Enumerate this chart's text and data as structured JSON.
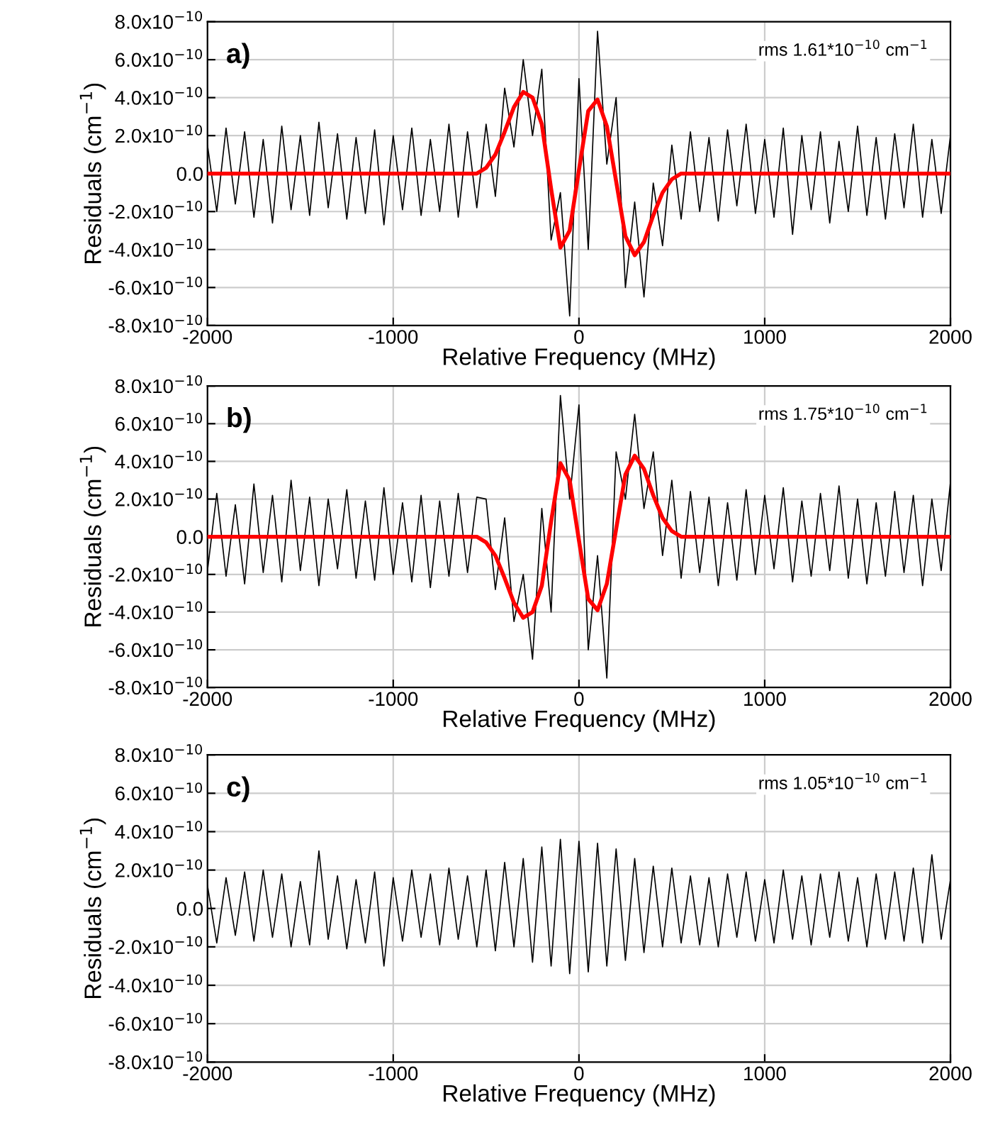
{
  "chart_data": [
    {
      "type": "line",
      "xlabel": "Relative Frequency (MHz)",
      "ylabel": "Residuals (cm$^{−1}$)",
      "annotations": [
        "a)",
        "rms 1.61*10$^{−10}$ cm$^{−1}$"
      ],
      "xlim": [
        -2000,
        2000
      ],
      "xticks": [
        -2000,
        -1000,
        0,
        1000,
        2000
      ],
      "ylim": [
        -8e-10,
        8e-10
      ],
      "yticks": [
        {
          "value": -8e-10,
          "label": "-8.0x10$^{−10}$"
        },
        {
          "value": -6e-10,
          "label": "-6.0x10$^{−10}$"
        },
        {
          "value": -4e-10,
          "label": "-4.0x10$^{−10}$"
        },
        {
          "value": -2e-10,
          "label": "-2.0x10$^{−10}$"
        },
        {
          "value": 0,
          "label": "0.0"
        },
        {
          "value": 2e-10,
          "label": "2.0x10$^{−10}$"
        },
        {
          "value": 4e-10,
          "label": "4.0x10$^{−10}$"
        },
        {
          "value": 6e-10,
          "label": "6.0x10$^{−10}$"
        },
        {
          "value": 8e-10,
          "label": "8.0x10$^{−10}$"
        }
      ],
      "grid": true,
      "legend": false,
      "marker": "none",
      "line_style": "solid",
      "x": [
        -2000,
        -1950,
        -1900,
        -1850,
        -1800,
        -1750,
        -1700,
        -1650,
        -1600,
        -1550,
        -1500,
        -1450,
        -1400,
        -1350,
        -1300,
        -1250,
        -1200,
        -1150,
        -1100,
        -1050,
        -1000,
        -950,
        -900,
        -850,
        -800,
        -750,
        -700,
        -650,
        -600,
        -550,
        -500,
        -450,
        -400,
        -350,
        -300,
        -250,
        -200,
        -150,
        -100,
        -50,
        0,
        50,
        100,
        150,
        200,
        250,
        300,
        350,
        400,
        450,
        500,
        550,
        600,
        650,
        700,
        750,
        800,
        850,
        900,
        950,
        1000,
        1050,
        1100,
        1150,
        1200,
        1250,
        1300,
        1350,
        1400,
        1450,
        1500,
        1550,
        1600,
        1650,
        1700,
        1750,
        1800,
        1850,
        1900,
        1950,
        2000
      ],
      "series": [
        {
          "color": "#000000",
          "values": [
            1.5e-10,
            -2e-10,
            2.4e-10,
            -1.6e-10,
            2.2e-10,
            -2.3e-10,
            1.8e-10,
            -2.6e-10,
            2.5e-10,
            -1.9e-10,
            2e-10,
            -2.2e-10,
            2.7e-10,
            -1.8e-10,
            2.1e-10,
            -2.4e-10,
            1.9e-10,
            -2.1e-10,
            2.3e-10,
            -2.7e-10,
            2e-10,
            -1.9e-10,
            2.4e-10,
            -2.2e-10,
            1.8e-10,
            -2e-10,
            2.6e-10,
            -2.3e-10,
            2.2e-10,
            -1.8e-10,
            2.6e-10,
            -1.2e-10,
            4.5e-10,
            1.4e-10,
            6e-10,
            2e-10,
            5.5e-10,
            -3.5e-10,
            -1e-10,
            -7.5e-10,
            5e-10,
            -4e-10,
            7.5e-10,
            5e-11,
            4e-10,
            -6e-10,
            -1.5e-10,
            -6.5e-10,
            -5e-11,
            -3.8e-10,
            1.5e-10,
            -2.4e-10,
            2.2e-10,
            -2e-10,
            1.9e-10,
            -2.5e-10,
            2.3e-10,
            -1.7e-10,
            2.6e-10,
            -2.1e-10,
            1.8e-10,
            -2.3e-10,
            2.4e-10,
            -3.2e-10,
            2e-10,
            -1.9e-10,
            2.2e-10,
            -2.6e-10,
            1.7e-10,
            -2e-10,
            2.5e-10,
            -2.2e-10,
            1.9e-10,
            -2.4e-10,
            2.1e-10,
            -1.8e-10,
            2.6e-10,
            -2.3e-10,
            1.8e-10,
            -2.1e-10,
            2e-10
          ]
        },
        {
          "color": "#ff0000",
          "x": [
            -2000,
            -600,
            -550,
            -500,
            -450,
            -400,
            -350,
            -300,
            -250,
            -200,
            -150,
            -100,
            -50,
            0,
            50,
            100,
            150,
            200,
            250,
            300,
            350,
            400,
            450,
            500,
            550,
            600,
            2000
          ],
          "values": [
            0,
            0,
            0,
            3e-11,
            1e-10,
            2.2e-10,
            3.5e-10,
            4.3e-10,
            4e-10,
            2.6e-10,
            -8e-11,
            -3.9e-10,
            -3e-10,
            2e-11,
            3.3e-10,
            3.9e-10,
            2.5e-10,
            -4e-11,
            -3.3e-10,
            -4.3e-10,
            -3.6e-10,
            -2.2e-10,
            -1e-10,
            -3e-11,
            0,
            0,
            0
          ]
        }
      ]
    },
    {
      "type": "line",
      "xlabel": "Relative Frequency (MHz)",
      "ylabel": "Residuals (cm$^{−1}$)",
      "annotations": [
        "b)",
        "rms 1.75*10$^{−10}$ cm$^{−1}$"
      ],
      "xlim": [
        -2000,
        2000
      ],
      "xticks": [
        -2000,
        -1000,
        0,
        1000,
        2000
      ],
      "ylim": [
        -8e-10,
        8e-10
      ],
      "yticks": [
        {
          "value": -8e-10,
          "label": "-8.0x10$^{−10}$"
        },
        {
          "value": -6e-10,
          "label": "-6.0x10$^{−10}$"
        },
        {
          "value": -4e-10,
          "label": "-4.0x10$^{−10}$"
        },
        {
          "value": -2e-10,
          "label": "-2.0x10$^{−10}$"
        },
        {
          "value": 0,
          "label": "0.0"
        },
        {
          "value": 2e-10,
          "label": "2.0x10$^{−10}$"
        },
        {
          "value": 4e-10,
          "label": "4.0x10$^{−10}$"
        },
        {
          "value": 6e-10,
          "label": "6.0x10$^{−10}$"
        },
        {
          "value": 8e-10,
          "label": "8.0x10$^{−10}$"
        }
      ],
      "grid": true,
      "legend": false,
      "marker": "none",
      "line_style": "solid",
      "x": [
        -2000,
        -1950,
        -1900,
        -1850,
        -1800,
        -1750,
        -1700,
        -1650,
        -1600,
        -1550,
        -1500,
        -1450,
        -1400,
        -1350,
        -1300,
        -1250,
        -1200,
        -1150,
        -1100,
        -1050,
        -1000,
        -950,
        -900,
        -850,
        -800,
        -750,
        -700,
        -650,
        -600,
        -550,
        -500,
        -450,
        -400,
        -350,
        -300,
        -250,
        -200,
        -150,
        -100,
        -50,
        0,
        50,
        100,
        150,
        200,
        250,
        300,
        350,
        400,
        450,
        500,
        550,
        600,
        650,
        700,
        750,
        800,
        850,
        900,
        950,
        1000,
        1050,
        1100,
        1150,
        1200,
        1250,
        1300,
        1350,
        1400,
        1450,
        1500,
        1550,
        1600,
        1650,
        1700,
        1750,
        1800,
        1850,
        1900,
        1950,
        2000
      ],
      "series": [
        {
          "color": "#000000",
          "values": [
            -1.8e-10,
            2.3e-10,
            -2.1e-10,
            1.7e-10,
            -2.5e-10,
            2.8e-10,
            -1.9e-10,
            2.2e-10,
            -2.4e-10,
            3e-10,
            -1.8e-10,
            2.1e-10,
            -2.6e-10,
            2e-10,
            -1.7e-10,
            2.5e-10,
            -2.2e-10,
            1.9e-10,
            -2.3e-10,
            2.6e-10,
            -2e-10,
            1.8e-10,
            -2.4e-10,
            2.2e-10,
            -2.7e-10,
            1.9e-10,
            -2.1e-10,
            2.3e-10,
            -1.9e-10,
            2.1e-10,
            2e-10,
            -2.8e-10,
            1e-10,
            -4.5e-10,
            -2e-10,
            -6.5e-10,
            1.5e-10,
            -4e-10,
            7.5e-10,
            2e-10,
            7e-10,
            -6e-10,
            -1e-10,
            -7.5e-10,
            4.5e-10,
            2e-10,
            6.5e-10,
            1.5e-10,
            4.5e-10,
            -1e-10,
            3e-10,
            -2.2e-10,
            2.4e-10,
            -1.9e-10,
            2.1e-10,
            -2.6e-10,
            1.8e-10,
            -2.3e-10,
            2.5e-10,
            -2e-10,
            2.2e-10,
            -1.7e-10,
            2.6e-10,
            -2.4e-10,
            1.9e-10,
            -2.1e-10,
            2.3e-10,
            -1.8e-10,
            2.7e-10,
            -2.2e-10,
            2e-10,
            -2.5e-10,
            1.8e-10,
            -2.1e-10,
            2.4e-10,
            -1.9e-10,
            2.2e-10,
            -2.6e-10,
            2e-10,
            -1.8e-10,
            2.9e-10
          ]
        },
        {
          "color": "#ff0000",
          "x": [
            -2000,
            -600,
            -550,
            -500,
            -450,
            -400,
            -350,
            -300,
            -250,
            -200,
            -150,
            -100,
            -50,
            0,
            50,
            100,
            150,
            200,
            250,
            300,
            350,
            400,
            450,
            500,
            550,
            600,
            2000
          ],
          "values": [
            0,
            0,
            0,
            -3e-11,
            -1e-10,
            -2.2e-10,
            -3.5e-10,
            -4.3e-10,
            -4e-10,
            -2.6e-10,
            8e-11,
            3.9e-10,
            3e-10,
            -2e-11,
            -3.3e-10,
            -3.9e-10,
            -2.5e-10,
            4e-11,
            3.3e-10,
            4.3e-10,
            3.6e-10,
            2.2e-10,
            1e-10,
            3e-11,
            0,
            0,
            0
          ]
        }
      ]
    },
    {
      "type": "line",
      "xlabel": "Relative Frequency (MHz)",
      "ylabel": "Residuals (cm$^{−1}$)",
      "annotations": [
        "c)",
        "rms 1.05*10$^{−10}$ cm$^{−1}$"
      ],
      "xlim": [
        -2000,
        2000
      ],
      "xticks": [
        -2000,
        -1000,
        0,
        1000,
        2000
      ],
      "ylim": [
        -8e-10,
        8e-10
      ],
      "yticks": [
        {
          "value": -8e-10,
          "label": "-8.0x10$^{−10}$"
        },
        {
          "value": -6e-10,
          "label": "-6.0x10$^{−10}$"
        },
        {
          "value": -4e-10,
          "label": "-4.0x10$^{−10}$"
        },
        {
          "value": -2e-10,
          "label": "-2.0x10$^{−10}$"
        },
        {
          "value": 0,
          "label": "0.0"
        },
        {
          "value": 2e-10,
          "label": "2.0x10$^{−10}$"
        },
        {
          "value": 4e-10,
          "label": "4.0x10$^{−10}$"
        },
        {
          "value": 6e-10,
          "label": "6.0x10$^{−10}$"
        },
        {
          "value": 8e-10,
          "label": "8.0x10$^{−10}$"
        }
      ],
      "grid": true,
      "legend": false,
      "marker": "none",
      "line_style": "solid",
      "x": [
        -2000,
        -1950,
        -1900,
        -1850,
        -1800,
        -1750,
        -1700,
        -1650,
        -1600,
        -1550,
        -1500,
        -1450,
        -1400,
        -1350,
        -1300,
        -1250,
        -1200,
        -1150,
        -1100,
        -1050,
        -1000,
        -950,
        -900,
        -850,
        -800,
        -750,
        -700,
        -650,
        -600,
        -550,
        -500,
        -450,
        -400,
        -350,
        -300,
        -250,
        -200,
        -150,
        -100,
        -50,
        0,
        50,
        100,
        150,
        200,
        250,
        300,
        350,
        400,
        450,
        500,
        550,
        600,
        650,
        700,
        750,
        800,
        850,
        900,
        950,
        1000,
        1050,
        1100,
        1150,
        1200,
        1250,
        1300,
        1350,
        1400,
        1450,
        1500,
        1550,
        1600,
        1650,
        1700,
        1750,
        1800,
        1850,
        1900,
        1950,
        2000
      ],
      "series": [
        {
          "color": "#000000",
          "values": [
            1.2e-10,
            -1.8e-10,
            1.6e-10,
            -1.4e-10,
            1.9e-10,
            -1.7e-10,
            2e-10,
            -1.5e-10,
            1.8e-10,
            -2e-10,
            1.4e-10,
            -1.9e-10,
            3e-10,
            -1.6e-10,
            1.7e-10,
            -2.1e-10,
            1.5e-10,
            -1.8e-10,
            1.9e-10,
            -3e-10,
            1.6e-10,
            -1.7e-10,
            2e-10,
            -1.5e-10,
            1.8e-10,
            -1.9e-10,
            2.1e-10,
            -1.6e-10,
            1.7e-10,
            -2e-10,
            2e-10,
            -2.2e-10,
            2.4e-10,
            -2e-10,
            2.6e-10,
            -2.8e-10,
            3.2e-10,
            -3e-10,
            3.6e-10,
            -3.4e-10,
            3.5e-10,
            -3.3e-10,
            3.4e-10,
            -3e-10,
            3.1e-10,
            -2.7e-10,
            2.6e-10,
            -2.3e-10,
            2.2e-10,
            -2e-10,
            2.1e-10,
            -1.8e-10,
            1.7e-10,
            -1.9e-10,
            1.6e-10,
            -2e-10,
            1.8e-10,
            -1.5e-10,
            1.9e-10,
            -1.7e-10,
            1.5e-10,
            -1.8e-10,
            2e-10,
            -1.6e-10,
            1.7e-10,
            -1.9e-10,
            1.8e-10,
            -1.5e-10,
            1.9e-10,
            -1.7e-10,
            1.6e-10,
            -2e-10,
            1.8e-10,
            -1.6e-10,
            1.9e-10,
            -1.7e-10,
            2.1e-10,
            -1.8e-10,
            2.8e-10,
            -1.6e-10,
            1.5e-10
          ]
        }
      ]
    }
  ]
}
